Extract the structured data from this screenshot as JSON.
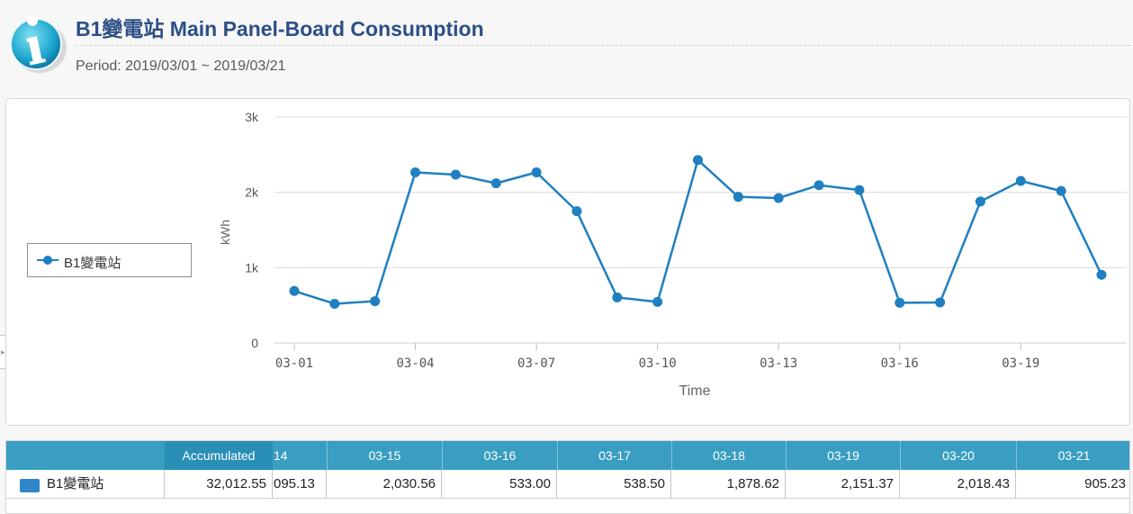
{
  "header": {
    "title": "B1變電站 Main Panel-Board Consumption",
    "period": "Period: 2019/03/01 ~ 2019/03/21",
    "icon": "info-icon"
  },
  "colors": {
    "title": "#2c4f86",
    "series": "#1f7fc0",
    "table_header": "#3a9ec3"
  },
  "chart_data": {
    "type": "line",
    "xlabel": "Time",
    "ylabel": "kWh",
    "x": [
      "03-01",
      "03-02",
      "03-03",
      "03-04",
      "03-05",
      "03-06",
      "03-07",
      "03-08",
      "03-09",
      "03-10",
      "03-11",
      "03-12",
      "03-13",
      "03-14",
      "03-15",
      "03-16",
      "03-17",
      "03-18",
      "03-19",
      "03-20",
      "03-21"
    ],
    "x_tick_labels": [
      "03-01",
      "03-04",
      "03-07",
      "03-10",
      "03-13",
      "03-16",
      "03-19"
    ],
    "y_tick_labels": [
      "0",
      "1k",
      "2k",
      "3k"
    ],
    "ylim": [
      0,
      3000
    ],
    "grid": true,
    "legend_position": "left",
    "series": [
      {
        "name": "B1變電站",
        "values": [
          690,
          520,
          555,
          2265,
          2235,
          2120,
          2265,
          1750,
          605,
          545,
          2430,
          1940,
          1925,
          2095,
          2030.56,
          533.0,
          538.5,
          1878.62,
          2151.37,
          2018.43,
          905.23
        ]
      }
    ]
  },
  "table": {
    "accumulated_label": "Accumulated",
    "partial_header": "14",
    "columns": [
      "03-15",
      "03-16",
      "03-17",
      "03-18",
      "03-19",
      "03-20",
      "03-21"
    ],
    "rows": [
      {
        "name": "B1變電站",
        "accumulated": "32,012.55",
        "partial_value": "095.13",
        "values": [
          "2,030.56",
          "533.00",
          "538.50",
          "1,878.62",
          "2,151.37",
          "2,018.43",
          "905.23"
        ]
      }
    ]
  }
}
